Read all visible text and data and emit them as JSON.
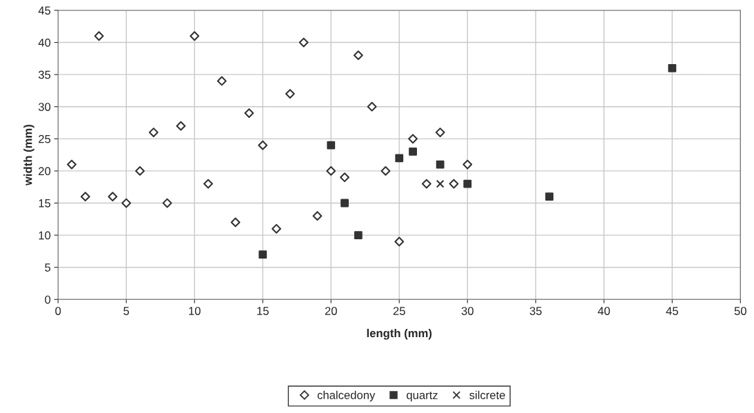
{
  "chart_data": {
    "type": "scatter",
    "xlabel": "length (mm)",
    "ylabel": "width (mm)",
    "xlim": [
      0,
      50
    ],
    "xticks": [
      0,
      5,
      10,
      15,
      20,
      25,
      30,
      35,
      40,
      45,
      50
    ],
    "ylim": [
      0,
      45
    ],
    "yticks": [
      0,
      5,
      10,
      15,
      20,
      25,
      30,
      35,
      40,
      45
    ],
    "grid": true,
    "legend": "bottom",
    "series": [
      {
        "name": "chalcedony",
        "color": "#ffffff",
        "marker": "diamond",
        "x": [
          1,
          2,
          3,
          4,
          5,
          6,
          7,
          8,
          9,
          10,
          11,
          12,
          13,
          14,
          15,
          16,
          17,
          18,
          19,
          20,
          21,
          22,
          23,
          24,
          25,
          26,
          27,
          28,
          29,
          30
        ],
        "values": [
          21,
          16,
          41,
          16,
          15,
          20,
          26,
          15,
          27,
          41,
          18,
          34,
          12,
          29,
          24,
          11,
          32,
          40,
          13,
          20,
          19,
          38,
          30,
          20,
          9,
          25,
          18,
          26,
          18,
          21
        ]
      },
      {
        "name": "quartz",
        "color": "#333333",
        "marker": "square",
        "x": [
          15,
          20,
          21,
          22,
          25,
          26,
          28,
          30,
          36,
          45
        ],
        "values": [
          7,
          24,
          15,
          10,
          22,
          23,
          21,
          18,
          16,
          36
        ]
      },
      {
        "name": "silcrete",
        "color": "#333333",
        "marker": "cross",
        "x": [
          28
        ],
        "values": [
          18
        ]
      }
    ]
  }
}
